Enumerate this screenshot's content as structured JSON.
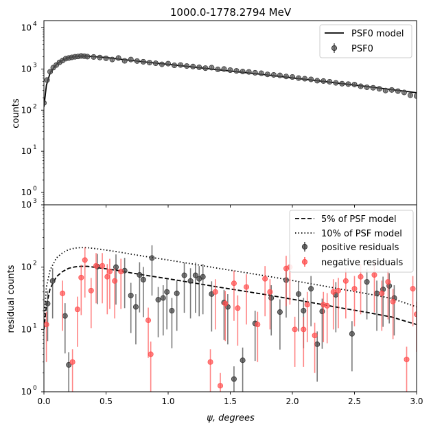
{
  "chart_data": [
    {
      "type": "scatter",
      "title": "1000.0-1778.2794 MeV",
      "xlabel": "",
      "ylabel": "counts",
      "xlim": [
        0,
        3
      ],
      "ylim": [
        0.5,
        15000
      ],
      "yscale": "log",
      "grid": false,
      "legend_position": "top-right",
      "legend": [
        "PSF0 model",
        "PSF0"
      ],
      "xticks": [
        0,
        0.5,
        1.0,
        1.5,
        2.0,
        2.5,
        3.0
      ],
      "yticks": [
        1,
        10,
        100,
        1000,
        10000
      ],
      "ytick_labels": [
        "10",
        "10",
        "10",
        "10",
        "10"
      ],
      "ytick_exponents": [
        "0",
        "1",
        "2",
        "3",
        "4"
      ],
      "series": [
        {
          "name": "PSF0 model",
          "style": "line",
          "color": "#000000",
          "x": [
            0.0,
            0.02,
            0.05,
            0.1,
            0.15,
            0.2,
            0.25,
            0.3,
            0.35,
            0.4,
            0.5,
            0.6,
            0.7,
            0.8,
            1.0,
            1.2,
            1.4,
            1.6,
            1.8,
            2.0,
            2.2,
            2.4,
            2.6,
            2.8,
            3.0
          ],
          "y": [
            120,
            400,
            800,
            1300,
            1650,
            1900,
            2000,
            2050,
            2050,
            2000,
            1900,
            1750,
            1620,
            1500,
            1300,
            1120,
            960,
            830,
            715,
            610,
            520,
            440,
            375,
            315,
            265
          ]
        },
        {
          "name": "PSF0",
          "style": "points",
          "color": "#555555",
          "x": [
            0.0,
            0.025,
            0.05,
            0.075,
            0.1,
            0.125,
            0.15,
            0.175,
            0.2,
            0.225,
            0.25,
            0.275,
            0.3,
            0.325,
            0.35,
            0.4,
            0.45,
            0.5,
            0.55,
            0.6,
            0.65,
            0.7,
            0.75,
            0.8,
            0.85,
            0.9,
            0.95,
            1.0,
            1.05,
            1.1,
            1.15,
            1.2,
            1.25,
            1.3,
            1.35,
            1.4,
            1.45,
            1.5,
            1.55,
            1.6,
            1.65,
            1.7,
            1.75,
            1.8,
            1.85,
            1.9,
            1.95,
            2.0,
            2.05,
            2.1,
            2.15,
            2.2,
            2.25,
            2.3,
            2.35,
            2.4,
            2.45,
            2.5,
            2.55,
            2.6,
            2.65,
            2.7,
            2.75,
            2.8,
            2.85,
            2.9,
            2.95,
            3.0
          ],
          "y": [
            150,
            540,
            860,
            1080,
            1250,
            1450,
            1600,
            1780,
            1850,
            1920,
            1980,
            2020,
            2080,
            2050,
            2000,
            1960,
            1900,
            1820,
            1700,
            1850,
            1580,
            1700,
            1560,
            1500,
            1430,
            1380,
            1300,
            1350,
            1230,
            1250,
            1180,
            1150,
            1100,
            1050,
            1080,
            980,
            1000,
            940,
            900,
            870,
            850,
            810,
            790,
            740,
            720,
            700,
            660,
            640,
            600,
            580,
            560,
            520,
            510,
            490,
            460,
            440,
            430,
            420,
            380,
            360,
            350,
            330,
            300,
            310,
            290,
            270,
            230,
            220
          ]
        }
      ]
    },
    {
      "type": "scatter",
      "title": "",
      "xlabel": "ψ, degrees",
      "ylabel": "residual counts",
      "xlim": [
        0,
        3
      ],
      "ylim": [
        1,
        1000
      ],
      "yscale": "log",
      "grid": false,
      "legend_position": "top-right",
      "legend": [
        "5% of PSF model",
        "10% of PSF model",
        "positive residuals",
        "negative residuals"
      ],
      "xticks": [
        0,
        0.5,
        1.0,
        1.5,
        2.0,
        2.5,
        3.0
      ],
      "xtick_labels": [
        "0.0",
        "0.5",
        "1.0",
        "1.5",
        "2.0",
        "2.5",
        "3.0"
      ],
      "yticks": [
        1,
        10,
        100,
        1000
      ],
      "ytick_labels": [
        "10",
        "10",
        "10",
        "10"
      ],
      "ytick_exponents": [
        "0",
        "1",
        "2",
        "3"
      ],
      "series": [
        {
          "name": "5% of PSF model",
          "style": "dashed",
          "color": "#000000",
          "x": [
            0.0,
            0.02,
            0.05,
            0.1,
            0.15,
            0.2,
            0.25,
            0.3,
            0.35,
            0.4,
            0.5,
            0.6,
            0.7,
            0.8,
            1.0,
            1.2,
            1.4,
            1.6,
            1.8,
            2.0,
            2.2,
            2.4,
            2.6,
            2.8,
            3.0
          ],
          "y": [
            10,
            24,
            45,
            70,
            85,
            96,
            101,
            103,
            103,
            100,
            94,
            88,
            81,
            75,
            65,
            56,
            48,
            41.5,
            35.8,
            30.5,
            26,
            22,
            18.8,
            15.8,
            12
          ]
        },
        {
          "name": "10% of PSF model",
          "style": "dotted",
          "color": "#000000",
          "x": [
            0.0,
            0.02,
            0.05,
            0.1,
            0.15,
            0.2,
            0.25,
            0.3,
            0.35,
            0.4,
            0.5,
            0.6,
            0.7,
            0.8,
            1.0,
            1.2,
            1.4,
            1.6,
            1.8,
            2.0,
            2.2,
            2.4,
            2.6,
            2.8,
            3.0
          ],
          "y": [
            14,
            48,
            90,
            140,
            170,
            192,
            202,
            206,
            205,
            200,
            188,
            175,
            162,
            150,
            130,
            112,
            96,
            83,
            71.5,
            61,
            52,
            44,
            37.5,
            31.5,
            23
          ]
        },
        {
          "name": "positive residuals",
          "style": "points",
          "color": "#404040",
          "x": [
            0.03,
            0.07,
            0.17,
            0.2,
            0.43,
            0.58,
            0.65,
            0.7,
            0.74,
            0.77,
            0.8,
            0.87,
            0.92,
            0.96,
            0.99,
            1.03,
            1.07,
            1.13,
            1.18,
            1.22,
            1.25,
            1.28,
            1.35,
            1.45,
            1.48,
            1.53,
            1.6,
            1.7,
            1.83,
            1.9,
            1.95,
            2.05,
            2.09,
            2.15,
            2.2,
            2.24,
            2.35,
            2.48,
            2.6,
            2.68,
            2.73,
            2.78,
            2.82
          ],
          "y": [
            26,
            60,
            16.5,
            2.7,
            102,
            100,
            88,
            35,
            23,
            75,
            63,
            140,
            30,
            32,
            40,
            20,
            38,
            74,
            60,
            74,
            65,
            70,
            37,
            27,
            23,
            1.6,
            3.2,
            12.5,
            32,
            19,
            62,
            37,
            20,
            45,
            5.8,
            19.5,
            36,
            8.5,
            58,
            38,
            44,
            50,
            32
          ]
        },
        {
          "name": "negative residuals",
          "style": "points",
          "color": "#ff5050",
          "x": [
            0.02,
            0.15,
            0.23,
            0.27,
            0.3,
            0.33,
            0.38,
            0.42,
            0.47,
            0.51,
            0.53,
            0.57,
            0.62,
            0.84,
            0.86,
            1.34,
            1.38,
            1.42,
            1.46,
            1.53,
            1.56,
            1.63,
            1.72,
            1.78,
            1.82,
            1.95,
            1.98,
            2.02,
            2.09,
            2.12,
            2.18,
            2.25,
            2.28,
            2.33,
            2.37,
            2.43,
            2.5,
            2.55,
            2.66,
            2.72,
            2.77,
            2.81,
            2.92,
            2.97,
            3.0
          ],
          "y": [
            12,
            38,
            3,
            21,
            68,
            130,
            42,
            105,
            105,
            70,
            85,
            60,
            85,
            14,
            4,
            3,
            40,
            1.25,
            26,
            55,
            22,
            48,
            12,
            65,
            40,
            95,
            100,
            10,
            10,
            25,
            8,
            25,
            24,
            40,
            42,
            60,
            45,
            70,
            75,
            38,
            58,
            28,
            3.3,
            45,
            17.5
          ]
        }
      ]
    }
  ]
}
